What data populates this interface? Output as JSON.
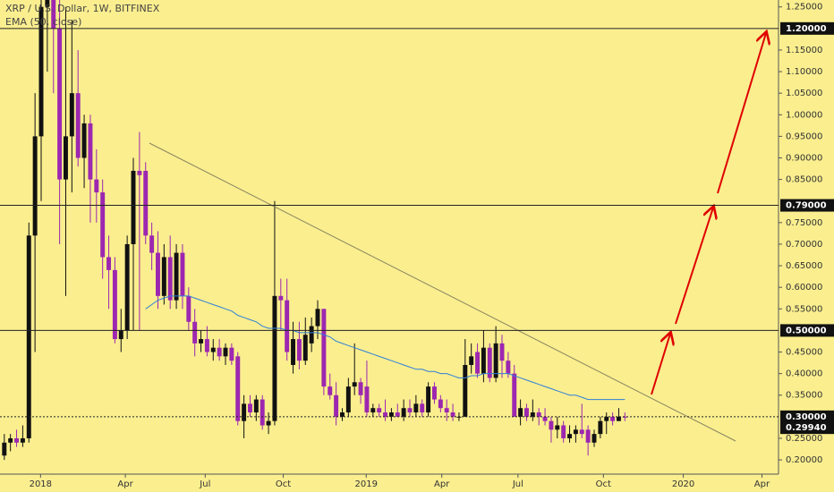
{
  "chart_data": {
    "type": "candlestick",
    "title": "XRP / U.S. Dollar, 1W, BITFINEX",
    "up_color": "#111111",
    "down_color": "#9c27b0",
    "ohlc": {
      "open": [
        0.21,
        0.24,
        0.25,
        0.24,
        0.25,
        0.72,
        0.95,
        1.25,
        1.28,
        1.2,
        0.85,
        0.95,
        1.05,
        0.9,
        0.98,
        0.85,
        0.82,
        0.67,
        0.64,
        0.48,
        0.5,
        0.7,
        0.87,
        0.87,
        0.72,
        0.68,
        0.58,
        0.67,
        0.57,
        0.68,
        0.58,
        0.52,
        0.47,
        0.48,
        0.45,
        0.46,
        0.44,
        0.46,
        0.44,
        0.29,
        0.33,
        0.31,
        0.34,
        0.28,
        0.29,
        0.58,
        0.57,
        0.42,
        0.48,
        0.43,
        0.47,
        0.51,
        0.55,
        0.37,
        0.35,
        0.3,
        0.31,
        0.37,
        0.38,
        0.37,
        0.31,
        0.32,
        0.31,
        0.3,
        0.31,
        0.3,
        0.32,
        0.31,
        0.33,
        0.31,
        0.37,
        0.34,
        0.32,
        0.31,
        0.3,
        0.3,
        0.42,
        0.45,
        0.4,
        0.46,
        0.39,
        0.47,
        0.43,
        0.4,
        0.3,
        0.32,
        0.3,
        0.31,
        0.3,
        0.29,
        0.27,
        0.28,
        0.25,
        0.26,
        0.27,
        0.27,
        0.24,
        0.26,
        0.29,
        0.3,
        0.29,
        0.3
      ],
      "high": [
        0.26,
        0.26,
        0.27,
        0.28,
        0.75,
        1.05,
        1.3,
        1.3,
        1.3,
        1.3,
        1.25,
        1.22,
        1.15,
        1.0,
        1.0,
        0.92,
        0.85,
        0.72,
        0.67,
        0.55,
        0.72,
        0.9,
        0.96,
        0.89,
        0.75,
        0.73,
        0.7,
        0.72,
        0.7,
        0.7,
        0.6,
        0.55,
        0.5,
        0.51,
        0.48,
        0.48,
        0.47,
        0.47,
        0.45,
        0.35,
        0.35,
        0.35,
        0.35,
        0.31,
        0.8,
        0.62,
        0.62,
        0.52,
        0.52,
        0.53,
        0.53,
        0.57,
        0.55,
        0.4,
        0.38,
        0.32,
        0.39,
        0.47,
        0.39,
        0.43,
        0.33,
        0.33,
        0.34,
        0.32,
        0.33,
        0.34,
        0.34,
        0.35,
        0.34,
        0.38,
        0.38,
        0.35,
        0.34,
        0.33,
        0.31,
        0.48,
        0.47,
        0.47,
        0.5,
        0.47,
        0.51,
        0.49,
        0.45,
        0.42,
        0.34,
        0.33,
        0.34,
        0.32,
        0.32,
        0.3,
        0.3,
        0.29,
        0.28,
        0.28,
        0.33,
        0.28,
        0.27,
        0.3,
        0.31,
        0.31,
        0.32,
        0.31
      ],
      "low": [
        0.2,
        0.22,
        0.23,
        0.23,
        0.24,
        0.45,
        0.8,
        1.1,
        1.05,
        0.7,
        0.58,
        0.82,
        0.88,
        0.83,
        0.75,
        0.75,
        0.62,
        0.55,
        0.47,
        0.45,
        0.48,
        0.5,
        0.5,
        0.7,
        0.64,
        0.55,
        0.56,
        0.55,
        0.55,
        0.55,
        0.5,
        0.44,
        0.45,
        0.44,
        0.43,
        0.43,
        0.42,
        0.42,
        0.28,
        0.25,
        0.3,
        0.29,
        0.27,
        0.26,
        0.28,
        0.5,
        0.43,
        0.4,
        0.41,
        0.42,
        0.45,
        0.48,
        0.35,
        0.34,
        0.28,
        0.29,
        0.3,
        0.35,
        0.33,
        0.3,
        0.3,
        0.3,
        0.29,
        0.29,
        0.3,
        0.29,
        0.3,
        0.3,
        0.3,
        0.3,
        0.33,
        0.31,
        0.29,
        0.29,
        0.29,
        0.3,
        0.4,
        0.39,
        0.38,
        0.38,
        0.38,
        0.39,
        0.39,
        0.3,
        0.28,
        0.29,
        0.29,
        0.28,
        0.28,
        0.24,
        0.25,
        0.24,
        0.24,
        0.24,
        0.25,
        0.21,
        0.23,
        0.25,
        0.26,
        0.28,
        0.29,
        0.29
      ],
      "close": [
        0.24,
        0.25,
        0.24,
        0.25,
        0.72,
        0.95,
        1.25,
        1.28,
        1.2,
        0.85,
        0.95,
        1.05,
        0.9,
        0.98,
        0.85,
        0.82,
        0.67,
        0.64,
        0.48,
        0.5,
        0.7,
        0.87,
        0.86,
        0.72,
        0.68,
        0.58,
        0.67,
        0.57,
        0.68,
        0.58,
        0.52,
        0.47,
        0.48,
        0.45,
        0.46,
        0.44,
        0.46,
        0.43,
        0.29,
        0.33,
        0.31,
        0.34,
        0.28,
        0.29,
        0.58,
        0.57,
        0.45,
        0.48,
        0.43,
        0.49,
        0.51,
        0.55,
        0.37,
        0.35,
        0.3,
        0.31,
        0.37,
        0.38,
        0.35,
        0.31,
        0.32,
        0.31,
        0.3,
        0.31,
        0.3,
        0.32,
        0.31,
        0.33,
        0.31,
        0.37,
        0.34,
        0.32,
        0.31,
        0.3,
        0.3,
        0.42,
        0.44,
        0.4,
        0.46,
        0.39,
        0.47,
        0.43,
        0.4,
        0.3,
        0.32,
        0.3,
        0.31,
        0.3,
        0.29,
        0.27,
        0.28,
        0.25,
        0.26,
        0.27,
        0.26,
        0.24,
        0.26,
        0.29,
        0.3,
        0.29,
        0.3,
        0.2994
      ]
    },
    "ema": {
      "name": "EMA (50, close)",
      "color": "#2f7fd8",
      "values": [
        null,
        null,
        null,
        null,
        null,
        null,
        null,
        null,
        null,
        null,
        null,
        null,
        null,
        null,
        null,
        null,
        null,
        null,
        null,
        null,
        null,
        null,
        null,
        0.55,
        0.56,
        0.57,
        0.575,
        0.58,
        0.58,
        0.58,
        0.58,
        0.575,
        0.57,
        0.565,
        0.56,
        0.555,
        0.55,
        0.545,
        0.535,
        0.53,
        0.525,
        0.52,
        0.51,
        0.505,
        0.505,
        0.505,
        0.5,
        0.5,
        0.495,
        0.495,
        0.495,
        0.495,
        0.49,
        0.485,
        0.475,
        0.47,
        0.465,
        0.46,
        0.455,
        0.45,
        0.445,
        0.44,
        0.435,
        0.43,
        0.425,
        0.42,
        0.415,
        0.41,
        0.41,
        0.405,
        0.405,
        0.4,
        0.4,
        0.395,
        0.39,
        0.39,
        0.395,
        0.395,
        0.4,
        0.4,
        0.4,
        0.4,
        0.4,
        0.395,
        0.39,
        0.385,
        0.38,
        0.375,
        0.37,
        0.365,
        0.36,
        0.355,
        0.35,
        0.35,
        0.345,
        0.34,
        0.34,
        0.34,
        0.34,
        0.34,
        0.34,
        0.34
      ]
    },
    "hlines": [
      {
        "value": 1.2,
        "label": "1.20000"
      },
      {
        "value": 0.79,
        "label": "0.79000"
      },
      {
        "value": 0.5,
        "label": "0.50000"
      },
      {
        "value": 0.3,
        "label": "0.30000"
      }
    ],
    "last_price": {
      "value": 0.2994,
      "label": "0.29940"
    },
    "xlim": [
      -0.7,
      126
    ],
    "xticks": [
      {
        "value": 5.9,
        "label": "2018"
      },
      {
        "value": 19.7,
        "label": "Apr"
      },
      {
        "value": 32.7,
        "label": "Jul"
      },
      {
        "value": 45.4,
        "label": "Oct"
      },
      {
        "value": 58.9,
        "label": "2019"
      },
      {
        "value": 71.2,
        "label": "Apr"
      },
      {
        "value": 83.6,
        "label": "Jul"
      },
      {
        "value": 97.5,
        "label": "Oct"
      },
      {
        "value": 110.5,
        "label": "2020"
      },
      {
        "value": 123.3,
        "label": "Apr"
      }
    ],
    "ylim": [
      0.167,
      1.266
    ],
    "yticks": [
      {
        "value": 0.2,
        "label": "0.20000"
      },
      {
        "value": 0.25,
        "label": "0.25000"
      },
      {
        "value": 0.35,
        "label": "0.35000"
      },
      {
        "value": 0.4,
        "label": "0.40000"
      },
      {
        "value": 0.45,
        "label": "0.45000"
      },
      {
        "value": 0.55,
        "label": "0.55000"
      },
      {
        "value": 0.6,
        "label": "0.60000"
      },
      {
        "value": 0.65,
        "label": "0.65000"
      },
      {
        "value": 0.7,
        "label": "0.70000"
      },
      {
        "value": 0.75,
        "label": "0.75000"
      },
      {
        "value": 0.85,
        "label": "0.85000"
      },
      {
        "value": 0.9,
        "label": "0.90000"
      },
      {
        "value": 0.95,
        "label": "0.95000"
      },
      {
        "value": 1.0,
        "label": "1.00000"
      },
      {
        "value": 1.05,
        "label": "1.05000"
      },
      {
        "value": 1.1,
        "label": "1.10000"
      },
      {
        "value": 1.15,
        "label": "1.15000"
      },
      {
        "value": 1.25,
        "label": "1.25000"
      }
    ]
  }
}
